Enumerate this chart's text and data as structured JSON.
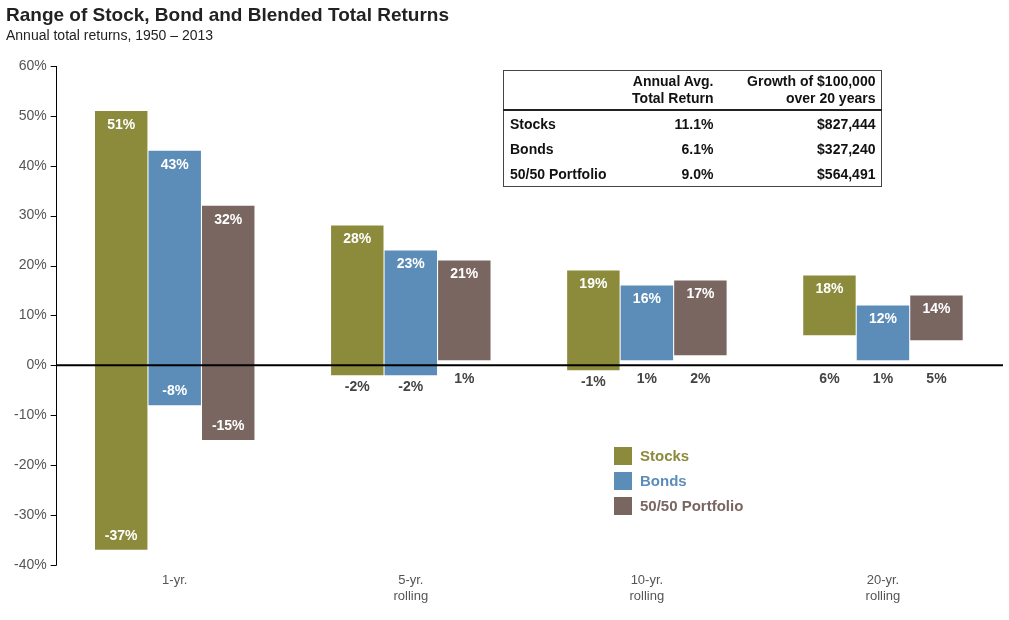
{
  "chart_data": {
    "type": "bar",
    "title": "Range of Stock, Bond and Blended Total Returns",
    "subtitle": "Annual total returns, 1950 – 2013",
    "categories": [
      "1-yr.",
      "5-yr.\nrolling",
      "10-yr.\nrolling",
      "20-yr.\nrolling"
    ],
    "series": [
      {
        "name": "Stocks",
        "color": "#8b8b3b",
        "base": [
          -37,
          -2,
          -1,
          6
        ],
        "values": [
          88,
          30,
          20,
          12
        ]
      },
      {
        "name": "Bonds",
        "color": "#5b8db8",
        "base": [
          -8,
          -2,
          1,
          1
        ],
        "values": [
          51,
          25,
          15,
          11
        ]
      },
      {
        "name": "50/50 Portfolio",
        "color": "#7a6660",
        "base": [
          -15,
          1,
          2,
          5
        ],
        "values": [
          47,
          20,
          15,
          9
        ]
      }
    ],
    "ylim": [
      -40,
      60
    ],
    "yticks": [
      {
        "value": -40,
        "label": "-40%"
      },
      {
        "value": -30,
        "label": "-30%"
      },
      {
        "value": -20,
        "label": "-20%"
      },
      {
        "value": -10,
        "label": "-10%"
      },
      {
        "value": 0,
        "label": "0%"
      },
      {
        "value": 10,
        "label": "10%"
      },
      {
        "value": 20,
        "label": "20%"
      },
      {
        "value": 30,
        "label": "30%"
      },
      {
        "value": 40,
        "label": "40%"
      },
      {
        "value": 50,
        "label": "50%"
      },
      {
        "value": 60,
        "label": "60%"
      }
    ],
    "legend": "bottom right",
    "annotations": [
      "51%",
      "-37%",
      "43%",
      "-8%",
      "32%",
      "-15%",
      "28%",
      "-2%",
      "23%",
      "-2%",
      "21%",
      "1%",
      "19%",
      "-1%",
      "16%",
      "1%",
      "17%",
      "2%",
      "18%",
      "6%",
      "12%",
      "1%",
      "14%",
      "5%",
      "Annual Avg. Total Return",
      "Growth of $100,000 over 20 years",
      "Stocks",
      "11.1%",
      "$827,444",
      "Bonds",
      "6.1%",
      "$327,240",
      "50/50 Portfolio",
      "9.0%",
      "$564,491"
    ]
  }
}
